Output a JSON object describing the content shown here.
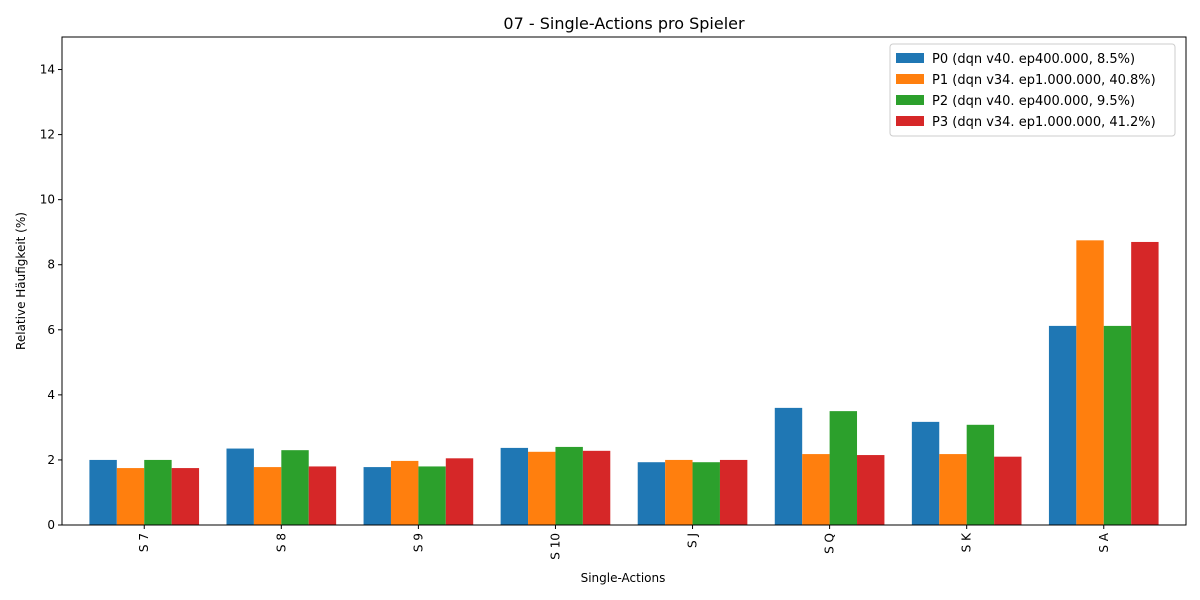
{
  "chart_data": {
    "type": "bar",
    "title": "07 - Single-Actions pro Spieler",
    "xlabel": "Single-Actions",
    "ylabel": "Relative Häufigkeit (%)",
    "ylim": [
      0,
      15
    ],
    "yticks": [
      0,
      2,
      4,
      6,
      8,
      10,
      12,
      14
    ],
    "grid": false,
    "legend_position": "top-right",
    "categories": [
      "S 7",
      "S 8",
      "S 9",
      "S 10",
      "S J",
      "S Q",
      "S K",
      "S A"
    ],
    "series": [
      {
        "name": "P0 (dqn v40. ep400.000, 8.5%)",
        "color": "#1f77b4",
        "values": [
          2.0,
          2.35,
          1.78,
          2.37,
          1.93,
          3.6,
          3.17,
          6.12
        ]
      },
      {
        "name": "P1 (dqn v34. ep1.000.000, 40.8%)",
        "color": "#ff7f0e",
        "values": [
          1.75,
          1.78,
          1.97,
          2.25,
          2.0,
          2.18,
          2.18,
          8.75
        ]
      },
      {
        "name": "P2 (dqn v40. ep400.000, 9.5%)",
        "color": "#2ca02c",
        "values": [
          2.0,
          2.3,
          1.8,
          2.4,
          1.93,
          3.5,
          3.08,
          6.12
        ]
      },
      {
        "name": "P3 (dqn v34. ep1.000.000, 41.2%)",
        "color": "#d62728",
        "values": [
          1.75,
          1.8,
          2.05,
          2.28,
          2.0,
          2.15,
          2.1,
          8.7
        ]
      }
    ]
  }
}
